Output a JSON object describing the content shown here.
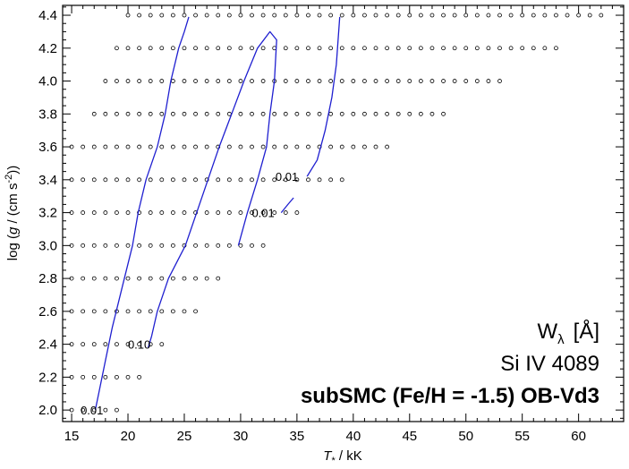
{
  "chart_data": {
    "type": "scatter",
    "x_axis": {
      "label_symbol": "T",
      "label_subscript": "*",
      "label_unit": " / kK",
      "range": [
        14.2,
        64.0
      ],
      "ticks": [
        15,
        20,
        25,
        30,
        35,
        40,
        45,
        50,
        55,
        60
      ],
      "tick_labels": [
        "15",
        "20",
        "25",
        "30",
        "35",
        "40",
        "45",
        "50",
        "55",
        "60"
      ],
      "minor_step": 1
    },
    "y_axis": {
      "label_prefix": "log (",
      "label_symbol": "g",
      "label_unit": " / (cm s",
      "label_exponent": "-2",
      "label_suffix": "))",
      "range": [
        1.93,
        4.46
      ],
      "ticks": [
        2.0,
        2.2,
        2.4,
        2.6,
        2.8,
        3.0,
        3.2,
        3.4,
        3.6,
        3.8,
        4.0,
        4.2,
        4.4
      ],
      "tick_labels": [
        "2.0",
        "2.2",
        "2.4",
        "2.6",
        "2.8",
        "3.0",
        "3.2",
        "3.4",
        "3.6",
        "3.8",
        "4.0",
        "4.2",
        "4.4"
      ],
      "minor_step": 0.05
    },
    "grid_models": [
      {
        "logg": 4.4,
        "teff_min": 20,
        "teff_max": 62
      },
      {
        "logg": 4.2,
        "teff_min": 19,
        "teff_max": 58
      },
      {
        "logg": 4.0,
        "teff_min": 18,
        "teff_max": 53
      },
      {
        "logg": 3.8,
        "teff_min": 17,
        "teff_max": 48
      },
      {
        "logg": 3.6,
        "teff_min": 15,
        "teff_max": 43
      },
      {
        "logg": 3.4,
        "teff_min": 15,
        "teff_max": 39
      },
      {
        "logg": 3.2,
        "teff_min": 15,
        "teff_max": 35
      },
      {
        "logg": 3.0,
        "teff_min": 15,
        "teff_max": 32
      },
      {
        "logg": 2.8,
        "teff_min": 15,
        "teff_max": 28
      },
      {
        "logg": 2.6,
        "teff_min": 15,
        "teff_max": 26
      },
      {
        "logg": 2.4,
        "teff_min": 15,
        "teff_max": 23
      },
      {
        "logg": 2.2,
        "teff_min": 15,
        "teff_max": 21
      },
      {
        "logg": 2.0,
        "teff_min": 15,
        "teff_max": 19
      }
    ],
    "contours": [
      {
        "points": [
          [
            17.1,
            2.0
          ],
          [
            17.4,
            2.1
          ],
          [
            18.0,
            2.3
          ],
          [
            18.6,
            2.5
          ],
          [
            19.5,
            2.75
          ],
          [
            20.4,
            3.0
          ],
          [
            20.9,
            3.2
          ],
          [
            21.6,
            3.4
          ],
          [
            22.6,
            3.6
          ],
          [
            23.3,
            3.8
          ],
          [
            23.8,
            4.0
          ],
          [
            24.5,
            4.2
          ],
          [
            25.0,
            4.3
          ],
          [
            25.4,
            4.39
          ]
        ]
      },
      {
        "points": [
          [
            21.8,
            2.38
          ],
          [
            22.1,
            2.45
          ],
          [
            22.6,
            2.6
          ],
          [
            23.6,
            2.8
          ],
          [
            25.1,
            3.0
          ],
          [
            26.1,
            3.2
          ],
          [
            27.1,
            3.4
          ],
          [
            28.1,
            3.6
          ],
          [
            29.2,
            3.8
          ],
          [
            30.3,
            4.0
          ],
          [
            31.5,
            4.2
          ],
          [
            32.6,
            4.3
          ],
          [
            33.2,
            4.25
          ],
          [
            33.0,
            4.0
          ],
          [
            32.6,
            3.8
          ],
          [
            32.3,
            3.6
          ],
          [
            31.5,
            3.4
          ],
          [
            30.6,
            3.2
          ],
          [
            29.8,
            3.0
          ]
        ]
      },
      {
        "points": [
          [
            33.6,
            3.2
          ],
          [
            34.2,
            3.25
          ],
          [
            34.7,
            3.29
          ]
        ]
      },
      {
        "points": [
          [
            35.9,
            3.42
          ],
          [
            36.8,
            3.52
          ],
          [
            37.5,
            3.7
          ],
          [
            38.1,
            3.9
          ],
          [
            38.5,
            4.1
          ],
          [
            38.8,
            4.39
          ]
        ]
      }
    ],
    "contour_labels": [
      {
        "text": "0.01",
        "x": 16.8,
        "y": 2.0
      },
      {
        "text": "0.10",
        "x": 21.0,
        "y": 2.4
      },
      {
        "text": "0.01",
        "x": 32.0,
        "y": 3.2
      },
      {
        "text": "0.01",
        "x": 34.1,
        "y": 3.42
      }
    ],
    "contour_color": "#1f1fd0",
    "annotations": {
      "quantity": "W",
      "quantity_sub": "λ",
      "quantity_unit": "[Å]",
      "line": "Si IV 4089",
      "model": "subSMC (Fe/H = -1.5) OB-Vd3"
    }
  }
}
